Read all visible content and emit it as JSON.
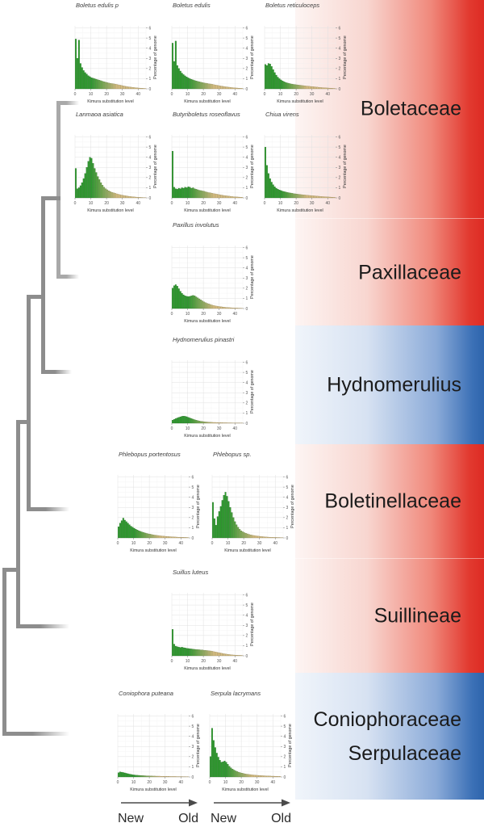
{
  "clade_bands": [
    {
      "id": "boletaceae",
      "label": "Boletaceae",
      "color": "red"
    },
    {
      "id": "paxillaceae",
      "label": "Paxillaceae",
      "color": "red"
    },
    {
      "id": "hydnomerulius",
      "label": "Hydnomerulius",
      "color": "blue"
    },
    {
      "id": "boletinellaceae",
      "label": "Boletinellaceae",
      "color": "red"
    },
    {
      "id": "suillineae",
      "label": "Suillineae",
      "color": "red"
    },
    {
      "id": "coniophoraceae-serpulaceae",
      "labels": [
        "Coniophoraceae",
        "Serpulaceae"
      ],
      "color": "blue"
    }
  ],
  "phylogeny_newick": "(((((Boletaceae,Paxillaceae),Hydnomerulius),Boletinellaceae),Suillineae),(Coniophoraceae,Serpulaceae));",
  "timeline": {
    "arrows": [
      {
        "new": "New",
        "old": "Old"
      },
      {
        "new": "New",
        "old": "Old"
      }
    ]
  },
  "colors": {
    "band_red": "#dd2b23",
    "band_blue": "#2e65ad",
    "bar_green": "#2b9d2b",
    "bar_tan": "#ddc382",
    "tree_gray": "#8d8d8d"
  },
  "chart_data": [
    {
      "id": "boletus-edulis-p",
      "type": "bar",
      "title": "Boletus edulis p",
      "xlabel": "Kimura substitution level",
      "ylabel": "Percentage of genome",
      "xticks": [
        0,
        10,
        20,
        30,
        40
      ],
      "yticks": [
        0,
        1,
        2,
        3,
        4,
        5,
        6
      ],
      "xlim": [
        0,
        45
      ],
      "ylim": [
        0,
        6.2
      ],
      "bin_width": 1,
      "values": [
        4.9,
        3.0,
        4.8,
        2.5,
        2.1,
        1.8,
        1.6,
        1.45,
        1.3,
        1.2,
        1.1,
        1.05,
        1.0,
        0.95,
        0.9,
        0.85,
        0.8,
        0.75,
        0.7,
        0.66,
        0.62,
        0.58,
        0.55,
        0.52,
        0.5,
        0.47,
        0.44,
        0.4,
        0.37,
        0.34,
        0.3,
        0.27,
        0.24,
        0.21,
        0.19,
        0.17,
        0.15,
        0.13,
        0.11,
        0.1,
        0.08,
        0.07,
        0.06,
        0.05,
        0.04
      ]
    },
    {
      "id": "boletus-edulis",
      "type": "bar",
      "title": "Boletus edulis",
      "xlabel": "Kimura substitution level",
      "ylabel": "Percentage of genome",
      "xticks": [
        0,
        10,
        20,
        30,
        40
      ],
      "yticks": [
        0,
        1,
        2,
        3,
        4,
        5,
        6
      ],
      "xlim": [
        0,
        45
      ],
      "ylim": [
        0,
        6.2
      ],
      "bin_width": 1,
      "values": [
        4.5,
        2.7,
        4.7,
        2.3,
        2.0,
        1.75,
        1.55,
        1.4,
        1.28,
        1.17,
        1.08,
        1.0,
        0.94,
        0.88,
        0.83,
        0.78,
        0.74,
        0.7,
        0.66,
        0.62,
        0.59,
        0.56,
        0.53,
        0.5,
        0.48,
        0.45,
        0.42,
        0.39,
        0.36,
        0.33,
        0.3,
        0.27,
        0.25,
        0.22,
        0.2,
        0.18,
        0.16,
        0.14,
        0.12,
        0.1,
        0.09,
        0.08,
        0.07,
        0.06,
        0.05
      ]
    },
    {
      "id": "boletus-reticuloceps",
      "type": "bar",
      "title": "Boletus reticuloceps",
      "xlabel": "Kimura substitution level",
      "ylabel": "Percentage of genome",
      "xticks": [
        0,
        10,
        20,
        30,
        40
      ],
      "yticks": [
        0,
        1,
        2,
        3,
        4,
        5,
        6
      ],
      "xlim": [
        0,
        45
      ],
      "ylim": [
        0,
        6.2
      ],
      "bin_width": 1,
      "values": [
        2.4,
        2.3,
        2.5,
        2.45,
        2.2,
        1.9,
        1.6,
        1.35,
        1.15,
        1.0,
        0.88,
        0.78,
        0.7,
        0.63,
        0.58,
        0.54,
        0.5,
        0.47,
        0.44,
        0.42,
        0.4,
        0.38,
        0.36,
        0.34,
        0.32,
        0.3,
        0.28,
        0.27,
        0.25,
        0.23,
        0.22,
        0.2,
        0.18,
        0.17,
        0.15,
        0.14,
        0.12,
        0.11,
        0.1,
        0.09,
        0.08,
        0.07,
        0.06,
        0.05,
        0.04
      ]
    },
    {
      "id": "lanmaoa-asiatica",
      "type": "bar",
      "title": "Lanmaoa asiatica",
      "xlabel": "Kimura substitution level",
      "ylabel": "Percentage of genome",
      "xticks": [
        0,
        10,
        20,
        30,
        40
      ],
      "yticks": [
        0,
        1,
        2,
        3,
        4,
        5,
        6
      ],
      "xlim": [
        0,
        45
      ],
      "ylim": [
        0,
        6.2
      ],
      "bin_width": 1,
      "values": [
        2.9,
        0.9,
        1.0,
        1.2,
        1.5,
        1.9,
        2.4,
        3.0,
        3.6,
        4.0,
        3.9,
        3.4,
        2.9,
        2.5,
        2.1,
        1.8,
        1.5,
        1.25,
        1.05,
        0.9,
        0.8,
        0.7,
        0.62,
        0.55,
        0.5,
        0.45,
        0.4,
        0.36,
        0.32,
        0.28,
        0.25,
        0.22,
        0.2,
        0.17,
        0.15,
        0.13,
        0.11,
        0.1,
        0.08,
        0.07,
        0.06,
        0.05,
        0.04,
        0.03,
        0.03
      ]
    },
    {
      "id": "butyriboletus-roseoflavus",
      "type": "bar",
      "title": "Butyriboletus roseoflavus",
      "xlabel": "Kimura substitution level",
      "ylabel": "Percentage of genome",
      "xticks": [
        0,
        10,
        20,
        30,
        40
      ],
      "yticks": [
        0,
        1,
        2,
        3,
        4,
        5,
        6
      ],
      "xlim": [
        0,
        45
      ],
      "ylim": [
        0,
        6.2
      ],
      "bin_width": 1,
      "values": [
        4.6,
        1.05,
        0.9,
        0.85,
        0.95,
        0.9,
        1.0,
        0.95,
        1.05,
        1.0,
        1.1,
        1.05,
        0.95,
        1.0,
        0.9,
        0.85,
        0.8,
        0.75,
        0.72,
        0.68,
        0.65,
        0.6,
        0.56,
        0.52,
        0.49,
        0.46,
        0.43,
        0.4,
        0.37,
        0.34,
        0.31,
        0.28,
        0.25,
        0.23,
        0.21,
        0.19,
        0.17,
        0.15,
        0.13,
        0.11,
        0.1,
        0.09,
        0.08,
        0.07,
        0.06
      ]
    },
    {
      "id": "chiua-virens",
      "type": "bar",
      "title": "Chiua virens",
      "xlabel": "Kimura substitution level",
      "ylabel": "Percentage of genome",
      "xticks": [
        0,
        10,
        20,
        30,
        40
      ],
      "yticks": [
        0,
        1,
        2,
        3,
        4,
        5,
        6
      ],
      "xlim": [
        0,
        45
      ],
      "ylim": [
        0,
        6.2
      ],
      "bin_width": 1,
      "values": [
        5.0,
        3.2,
        2.4,
        1.9,
        1.55,
        1.3,
        1.1,
        0.95,
        0.85,
        0.78,
        0.72,
        0.66,
        0.62,
        0.58,
        0.54,
        0.51,
        0.48,
        0.45,
        0.42,
        0.4,
        0.38,
        0.36,
        0.34,
        0.32,
        0.3,
        0.29,
        0.27,
        0.26,
        0.24,
        0.23,
        0.21,
        0.2,
        0.18,
        0.17,
        0.16,
        0.14,
        0.13,
        0.12,
        0.11,
        0.1,
        0.09,
        0.08,
        0.07,
        0.06,
        0.05
      ]
    },
    {
      "id": "paxillus-involutus",
      "type": "bar",
      "title": "Paxillus involutus",
      "xlabel": "Kimura substitution level",
      "ylabel": "Percentage of genome",
      "xticks": [
        0,
        10,
        20,
        30,
        40
      ],
      "yticks": [
        0,
        1,
        2,
        3,
        4,
        5,
        6
      ],
      "xlim": [
        0,
        45
      ],
      "ylim": [
        0,
        6.2
      ],
      "bin_width": 1,
      "values": [
        2.0,
        2.25,
        2.35,
        2.2,
        1.95,
        1.7,
        1.5,
        1.35,
        1.25,
        1.2,
        1.18,
        1.2,
        1.25,
        1.3,
        1.25,
        1.15,
        1.05,
        0.95,
        0.85,
        0.75,
        0.66,
        0.58,
        0.51,
        0.45,
        0.4,
        0.35,
        0.31,
        0.27,
        0.24,
        0.21,
        0.19,
        0.17,
        0.15,
        0.13,
        0.11,
        0.1,
        0.09,
        0.08,
        0.07,
        0.06,
        0.05,
        0.05,
        0.04,
        0.04,
        0.03
      ]
    },
    {
      "id": "hydnomerulius-pinastri",
      "type": "bar",
      "title": "Hydnomerulius pinastri",
      "xlabel": "Kimura substitution level",
      "ylabel": "Percentage of genome",
      "xticks": [
        0,
        10,
        20,
        30,
        40
      ],
      "yticks": [
        0,
        1,
        2,
        3,
        4,
        5,
        6
      ],
      "xlim": [
        0,
        45
      ],
      "ylim": [
        0,
        6.2
      ],
      "bin_width": 1,
      "values": [
        0.3,
        0.38,
        0.45,
        0.52,
        0.58,
        0.63,
        0.68,
        0.7,
        0.68,
        0.64,
        0.58,
        0.52,
        0.46,
        0.4,
        0.35,
        0.3,
        0.26,
        0.22,
        0.19,
        0.17,
        0.15,
        0.13,
        0.12,
        0.11,
        0.1,
        0.09,
        0.08,
        0.08,
        0.07,
        0.07,
        0.06,
        0.06,
        0.05,
        0.05,
        0.05,
        0.04,
        0.04,
        0.04,
        0.03,
        0.03,
        0.03,
        0.02,
        0.02,
        0.02,
        0.02
      ]
    },
    {
      "id": "phlebopus-portentosus",
      "type": "bar",
      "title": "Phlebopus portentosus",
      "xlabel": "Kimura substitution level",
      "ylabel": "Percentage of genome",
      "xticks": [
        0,
        10,
        20,
        30,
        40
      ],
      "yticks": [
        0,
        1,
        2,
        3,
        4,
        5,
        6
      ],
      "xlim": [
        0,
        45
      ],
      "ylim": [
        0,
        6.2
      ],
      "bin_width": 1,
      "values": [
        1.1,
        1.45,
        1.7,
        1.95,
        1.75,
        1.6,
        1.45,
        1.3,
        1.15,
        1.05,
        0.95,
        0.85,
        0.78,
        0.7,
        0.64,
        0.58,
        0.53,
        0.48,
        0.44,
        0.4,
        0.37,
        0.34,
        0.31,
        0.28,
        0.26,
        0.24,
        0.22,
        0.2,
        0.18,
        0.17,
        0.15,
        0.14,
        0.13,
        0.12,
        0.11,
        0.1,
        0.09,
        0.08,
        0.07,
        0.07,
        0.06,
        0.06,
        0.05,
        0.05,
        0.04
      ]
    },
    {
      "id": "phlebopus-sp",
      "type": "bar",
      "title": "Phlebopus sp.",
      "xlabel": "Kimura substitution level",
      "ylabel": "Percentage of genome",
      "xticks": [
        0,
        10,
        20,
        30,
        40
      ],
      "yticks": [
        0,
        1,
        2,
        3,
        4,
        5,
        6
      ],
      "xlim": [
        0,
        45
      ],
      "ylim": [
        0,
        6.2
      ],
      "bin_width": 1,
      "values": [
        3.5,
        1.9,
        1.25,
        2.1,
        2.6,
        3.1,
        3.7,
        4.2,
        4.5,
        4.1,
        3.6,
        3.0,
        2.5,
        2.0,
        1.6,
        1.3,
        1.05,
        0.85,
        0.7,
        0.6,
        0.52,
        0.45,
        0.4,
        0.35,
        0.3,
        0.27,
        0.24,
        0.21,
        0.19,
        0.17,
        0.15,
        0.13,
        0.12,
        0.1,
        0.09,
        0.08,
        0.07,
        0.06,
        0.06,
        0.05,
        0.05,
        0.04,
        0.04,
        0.03,
        0.03
      ]
    },
    {
      "id": "suillus-luteus",
      "type": "bar",
      "title": "Suillus luteus",
      "xlabel": "Kimura substitution level",
      "ylabel": "Percentage of genome",
      "xticks": [
        0,
        10,
        20,
        30,
        40
      ],
      "yticks": [
        0,
        1,
        2,
        3,
        4,
        5,
        6
      ],
      "xlim": [
        0,
        45
      ],
      "ylim": [
        0,
        6.2
      ],
      "bin_width": 1,
      "values": [
        2.6,
        1.15,
        0.95,
        0.9,
        0.85,
        0.82,
        0.85,
        0.8,
        0.78,
        0.74,
        0.72,
        0.7,
        0.68,
        0.66,
        0.64,
        0.62,
        0.61,
        0.6,
        0.58,
        0.57,
        0.55,
        0.54,
        0.52,
        0.5,
        0.48,
        0.45,
        0.42,
        0.39,
        0.36,
        0.32,
        0.29,
        0.26,
        0.23,
        0.2,
        0.17,
        0.15,
        0.13,
        0.11,
        0.09,
        0.08,
        0.07,
        0.06,
        0.05,
        0.05,
        0.04
      ]
    },
    {
      "id": "coniophora-puteana",
      "type": "bar",
      "title": "Coniophora puteana",
      "xlabel": "Kimura substitution level",
      "ylabel": "Percentage of genome",
      "xticks": [
        0,
        10,
        20,
        30,
        40
      ],
      "yticks": [
        0,
        1,
        2,
        3,
        4,
        5,
        6
      ],
      "xlim": [
        0,
        45
      ],
      "ylim": [
        0,
        6.2
      ],
      "bin_width": 1,
      "values": [
        0.42,
        0.5,
        0.47,
        0.44,
        0.4,
        0.36,
        0.32,
        0.28,
        0.25,
        0.22,
        0.2,
        0.18,
        0.17,
        0.16,
        0.15,
        0.14,
        0.13,
        0.12,
        0.11,
        0.11,
        0.1,
        0.1,
        0.09,
        0.09,
        0.08,
        0.08,
        0.08,
        0.07,
        0.07,
        0.07,
        0.06,
        0.06,
        0.06,
        0.05,
        0.05,
        0.05,
        0.05,
        0.04,
        0.04,
        0.04,
        0.04,
        0.03,
        0.03,
        0.03,
        0.03
      ]
    },
    {
      "id": "serpula-lacrymans",
      "type": "bar",
      "title": "Serpula lacrymans",
      "xlabel": "Kimura substitution level",
      "ylabel": "Percentage of genome",
      "xticks": [
        0,
        10,
        20,
        30,
        40
      ],
      "yticks": [
        0,
        1,
        2,
        3,
        4,
        5,
        6
      ],
      "xlim": [
        0,
        45
      ],
      "ylim": [
        0,
        6.2
      ],
      "bin_width": 1,
      "values": [
        2.0,
        4.8,
        3.6,
        2.9,
        2.35,
        1.95,
        1.65,
        1.45,
        1.5,
        1.58,
        1.45,
        1.25,
        1.05,
        0.9,
        0.78,
        0.68,
        0.6,
        0.53,
        0.47,
        0.42,
        0.38,
        0.35,
        0.31,
        0.28,
        0.26,
        0.24,
        0.22,
        0.2,
        0.19,
        0.17,
        0.16,
        0.15,
        0.14,
        0.13,
        0.12,
        0.11,
        0.1,
        0.1,
        0.09,
        0.08,
        0.08,
        0.07,
        0.07,
        0.06,
        0.06
      ]
    }
  ]
}
